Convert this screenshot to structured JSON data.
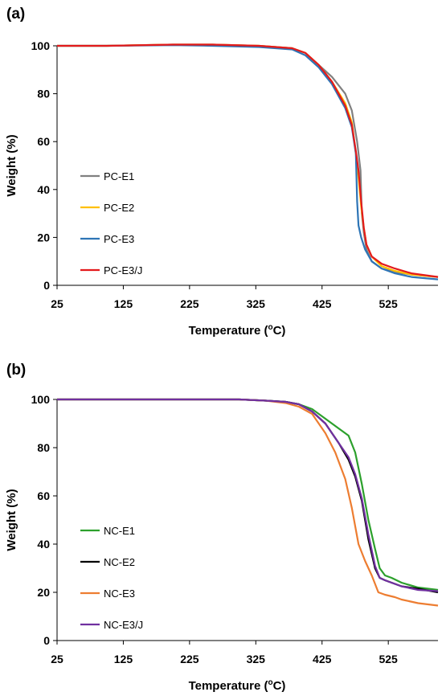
{
  "chart_data": [
    {
      "type": "line",
      "panel_label": "(a)",
      "xlabel": "Temperature (",
      "xlabel_sup": "o",
      "xlabel_tail": "C)",
      "ylabel": "Weight (%)",
      "xlim": [
        25,
        600
      ],
      "ylim": [
        0,
        100
      ],
      "xticks": [
        25,
        125,
        225,
        325,
        425,
        525
      ],
      "yticks": [
        0,
        20,
        40,
        60,
        80,
        100
      ],
      "grid": false,
      "legend_position": "bottom-left",
      "series": [
        {
          "name": "PC-E1",
          "color": "#808080",
          "x": [
            25,
            100,
            200,
            260,
            330,
            380,
            400,
            420,
            440,
            460,
            470,
            478,
            483,
            485,
            488,
            492,
            500,
            515,
            535,
            560,
            600
          ],
          "y": [
            100,
            100,
            100.5,
            100.5,
            100,
            99,
            97,
            92,
            87,
            80,
            73,
            60,
            48,
            30,
            22,
            15,
            10,
            7,
            5.5,
            4.5,
            3.5
          ]
        },
        {
          "name": "PC-E2",
          "color": "#FFC000",
          "x": [
            25,
            100,
            200,
            260,
            330,
            380,
            400,
            420,
            440,
            460,
            470,
            476,
            480,
            484,
            488,
            492,
            500,
            515,
            535,
            560,
            600
          ],
          "y": [
            100,
            100,
            100.5,
            100.5,
            100,
            99,
            97,
            92,
            85,
            76,
            68,
            55,
            45,
            33,
            24,
            17,
            12,
            8,
            6,
            4.5,
            3.5
          ]
        },
        {
          "name": "PC-E3",
          "color": "#2E75B6",
          "x": [
            25,
            100,
            200,
            260,
            330,
            380,
            400,
            420,
            440,
            460,
            470,
            476,
            478,
            480,
            484,
            490,
            500,
            515,
            535,
            560,
            600
          ],
          "y": [
            100,
            100,
            100.3,
            100,
            99.5,
            98.5,
            96,
            91,
            84,
            74,
            66,
            55,
            35,
            25,
            20,
            15,
            10,
            7,
            5,
            3.5,
            2.5
          ]
        },
        {
          "name": "PC-E3/J",
          "color": "#E31A1C",
          "x": [
            25,
            100,
            200,
            260,
            330,
            380,
            400,
            420,
            440,
            460,
            470,
            476,
            480,
            484,
            488,
            492,
            500,
            515,
            535,
            560,
            600
          ],
          "y": [
            100,
            100,
            100.5,
            100.5,
            100,
            99,
            97,
            92,
            85,
            75,
            67,
            56,
            48,
            35,
            24,
            17,
            12,
            9,
            7,
            5,
            3.5
          ]
        }
      ]
    },
    {
      "type": "line",
      "panel_label": "(b)",
      "xlabel": "Temperature (",
      "xlabel_sup": "o",
      "xlabel_tail": "C)",
      "ylabel": "Weight (%)",
      "xlim": [
        25,
        600
      ],
      "ylim": [
        0,
        100
      ],
      "xticks": [
        25,
        125,
        225,
        325,
        425,
        525
      ],
      "yticks": [
        0,
        20,
        40,
        60,
        80,
        100
      ],
      "grid": false,
      "legend_position": "bottom-left",
      "series": [
        {
          "name": "NC-E1",
          "color": "#2CA02C",
          "x": [
            25,
            100,
            200,
            300,
            340,
            370,
            390,
            410,
            430,
            450,
            465,
            475,
            485,
            495,
            505,
            512,
            520,
            530,
            545,
            570,
            600
          ],
          "y": [
            100,
            100,
            100,
            100,
            99.5,
            99,
            98,
            96,
            92,
            88,
            85,
            78,
            65,
            50,
            38,
            30,
            27,
            26,
            24,
            22,
            21
          ]
        },
        {
          "name": "NC-E2",
          "color": "#000000",
          "x": [
            25,
            100,
            200,
            300,
            340,
            370,
            390,
            410,
            430,
            450,
            465,
            475,
            485,
            495,
            505,
            512,
            520,
            530,
            545,
            570,
            600
          ],
          "y": [
            100,
            100,
            100,
            100,
            99.5,
            99,
            98,
            95,
            90,
            82,
            75,
            68,
            58,
            42,
            30,
            26,
            25,
            24,
            22.5,
            21.5,
            20
          ]
        },
        {
          "name": "NC-E3",
          "color": "#ED7D31",
          "x": [
            25,
            100,
            200,
            300,
            340,
            370,
            390,
            410,
            430,
            445,
            460,
            470,
            480,
            490,
            500,
            510,
            520,
            535,
            545,
            570,
            600
          ],
          "y": [
            100,
            100,
            100,
            100,
            99.5,
            98.5,
            97,
            94,
            86,
            78,
            67,
            55,
            40,
            33,
            27,
            20,
            19,
            18,
            17,
            15.5,
            14.5
          ]
        },
        {
          "name": "NC-E3/J",
          "color": "#7030A0",
          "x": [
            25,
            100,
            200,
            300,
            340,
            370,
            390,
            410,
            430,
            450,
            465,
            475,
            485,
            495,
            505,
            512,
            520,
            530,
            545,
            570,
            600
          ],
          "y": [
            100,
            100,
            100,
            100,
            99.5,
            99,
            98,
            95,
            90,
            82,
            76,
            69,
            59,
            44,
            31,
            26,
            25,
            24,
            22.5,
            21,
            20.5
          ]
        }
      ]
    }
  ]
}
